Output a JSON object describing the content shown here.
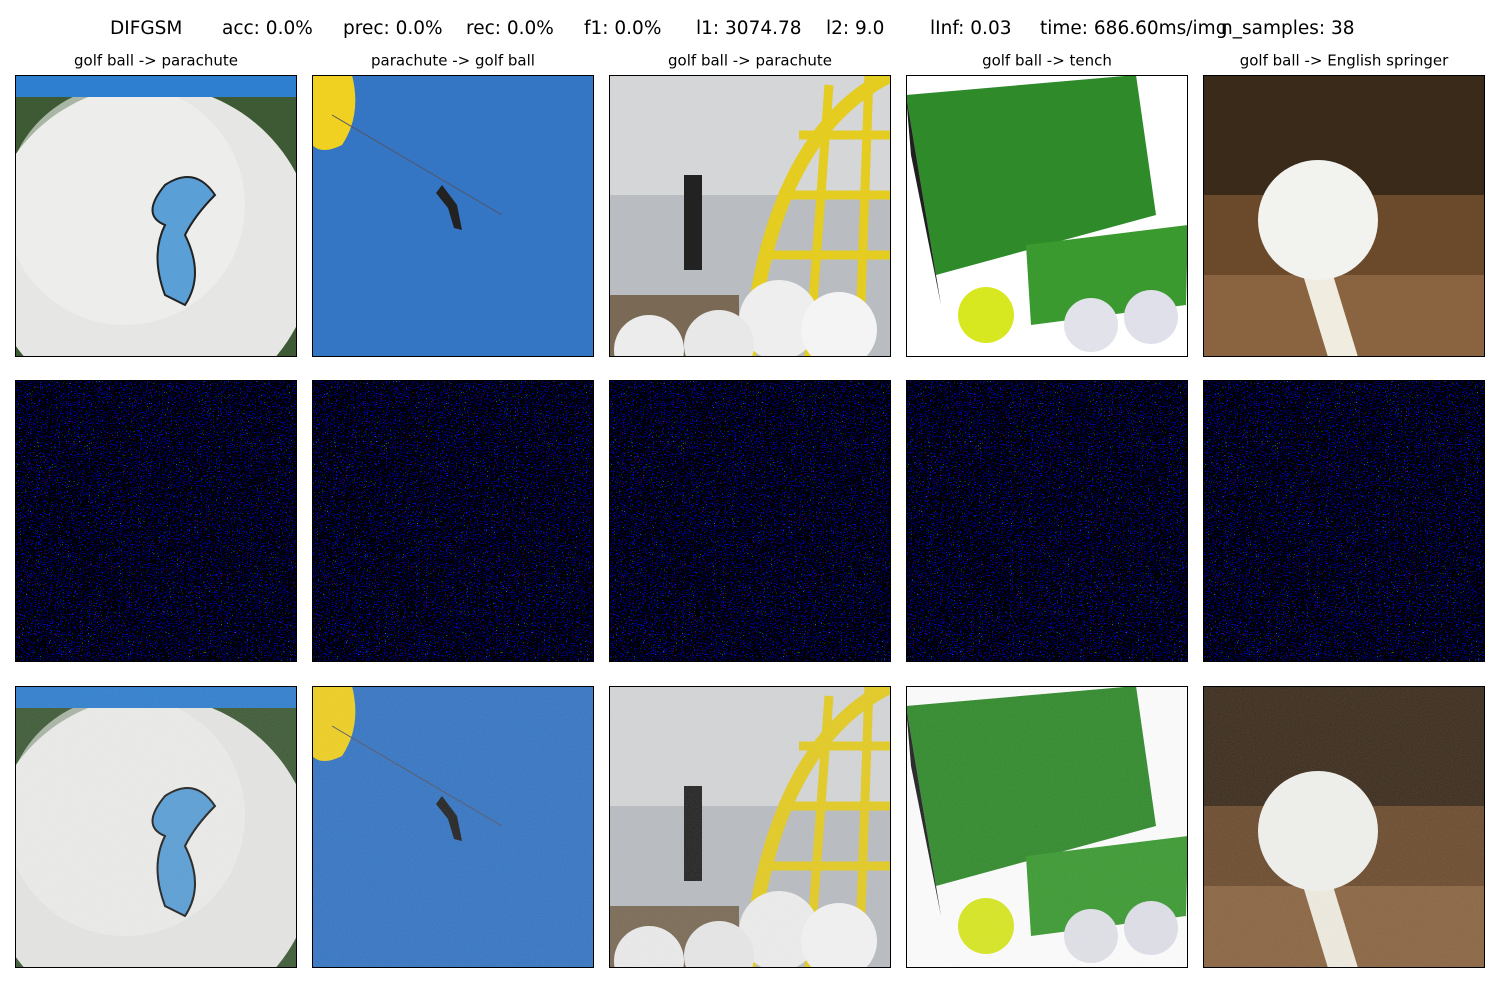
{
  "header": {
    "title": [
      "DIFGSM",
      "acc: 0.0%",
      "prec: 0.0%",
      "rec: 0.0%",
      "f1: 0.0%",
      "l1: 3074.78",
      "l2: 9.0",
      "lInf: 0.03",
      "time: 686.60ms/img",
      "n_samples: 38"
    ]
  },
  "columns": [
    "golf ball -> parachute",
    "parachute -> golf ball",
    "golf ball -> parachute",
    "golf ball -> tench",
    "golf ball -> English springer"
  ]
}
